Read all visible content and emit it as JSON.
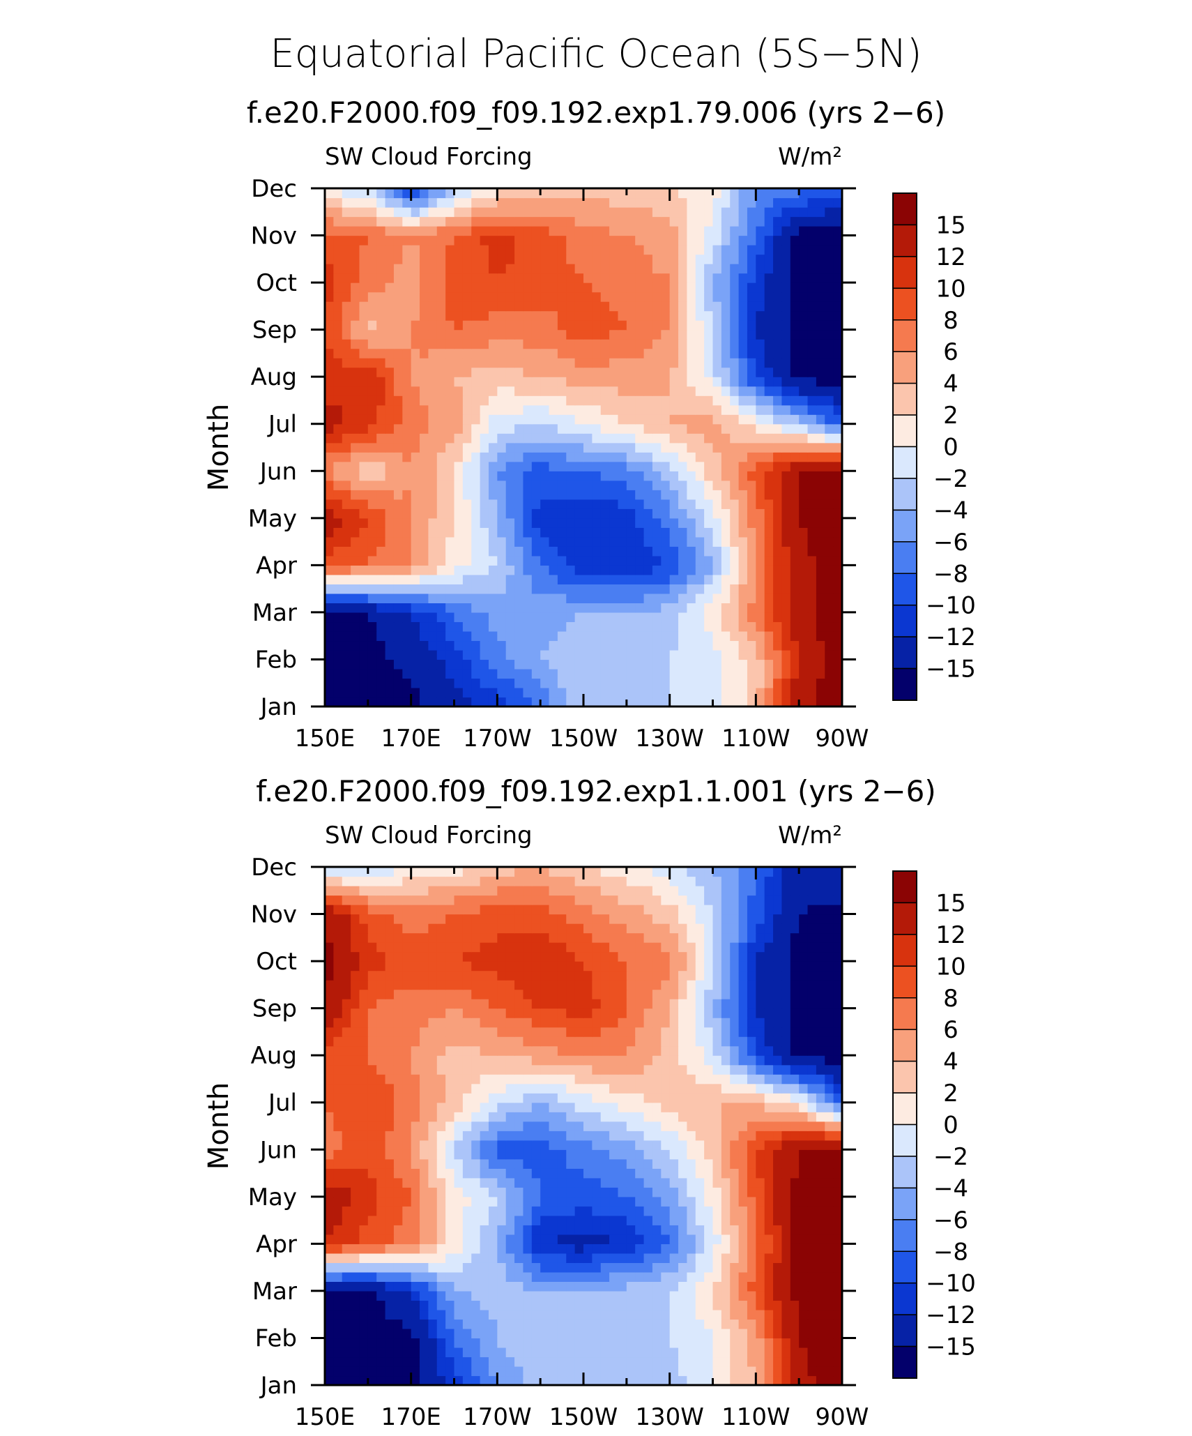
{
  "figure": {
    "title": "Equatorial Pacific Ocean (5S−5N)"
  },
  "chart_data": [
    {
      "type": "heatmap",
      "title": "f.e20.F2000.f09_f09.192.exp1.79.006 (yrs 2−6)",
      "left_label": "SW Cloud Forcing",
      "units": "W/m²",
      "xlabel": "",
      "ylabel": "Month",
      "x_ticklabels": [
        "150E",
        "170E",
        "170W",
        "150W",
        "130W",
        "110W",
        "90W"
      ],
      "x_values_deg_lon": [
        150,
        170,
        190,
        210,
        230,
        250,
        270
      ],
      "y_ticklabels": [
        "Jan",
        "Feb",
        "Mar",
        "Apr",
        "May",
        "Jun",
        "Jul",
        "Aug",
        "Sep",
        "Oct",
        "Nov",
        "Dec"
      ],
      "grid": [
        [
          -16,
          -16,
          -16,
          -13,
          -11,
          -8,
          -2,
          -3,
          -2,
          -1,
          3,
          14,
          17
        ],
        [
          -16,
          -16,
          -14,
          -11,
          -7,
          -4,
          -2,
          -3,
          -2,
          -1,
          3,
          12,
          17
        ],
        [
          -16,
          -15,
          -12,
          -8,
          -5,
          -5,
          -4,
          -4,
          -3,
          1,
          7,
          14,
          17
        ],
        [
          9,
          8,
          6,
          1,
          -2,
          -8,
          -11,
          -12,
          -10,
          -4,
          6,
          14,
          17
        ],
        [
          14,
          10,
          6,
          2,
          -4,
          -11,
          -12,
          -11,
          -7,
          -1,
          7,
          15,
          17
        ],
        [
          6,
          2,
          6,
          2,
          -6,
          -9,
          -8,
          -7,
          -3,
          3,
          9,
          15,
          17
        ],
        [
          13,
          11,
          7,
          5,
          -1,
          -2,
          0,
          2,
          4,
          5,
          1,
          -3,
          -9
        ],
        [
          11,
          12,
          6,
          4,
          3,
          4,
          5,
          5,
          4,
          -1,
          -10,
          -16,
          -16
        ],
        [
          10,
          3,
          6,
          8,
          7,
          7,
          9,
          8,
          6,
          -2,
          -12,
          -16,
          -16
        ],
        [
          11,
          7,
          5,
          9,
          10,
          9,
          8,
          7,
          6,
          -4,
          -11,
          -16,
          -16
        ],
        [
          9,
          8,
          6,
          8,
          11,
          9,
          7,
          6,
          5,
          -1,
          -8,
          -16,
          -16
        ],
        [
          0,
          -2,
          -11,
          -3,
          1,
          2,
          3,
          3,
          2,
          1,
          -6,
          -7,
          -9
        ]
      ],
      "colorbar_levels": [
        -15,
        -12,
        -10,
        -8,
        -6,
        -4,
        -2,
        0,
        2,
        4,
        6,
        8,
        10,
        12,
        15
      ],
      "colorbar_labels": [
        "15",
        "12",
        "10",
        "8",
        "6",
        "4",
        "2",
        "0",
        "−2",
        "−4",
        "−6",
        "−8",
        "−10",
        "−12",
        "−15"
      ],
      "colors": [
        "#03006b",
        "#0622a6",
        "#0b37d1",
        "#1f56e8",
        "#4a7ef2",
        "#7aa3f7",
        "#abc4f9",
        "#dae8fd",
        "#fdebe1",
        "#fbc5ad",
        "#f8a07c",
        "#f57a4f",
        "#ec5121",
        "#d8330e",
        "#b41a08",
        "#8b0404"
      ]
    },
    {
      "type": "heatmap",
      "title": "f.e20.F2000.f09_f09.192.exp1.1.001 (yrs 2−6)",
      "left_label": "SW Cloud Forcing",
      "units": "W/m²",
      "xlabel": "",
      "ylabel": "Month",
      "x_ticklabels": [
        "150E",
        "170E",
        "170W",
        "150W",
        "130W",
        "110W",
        "90W"
      ],
      "x_values_deg_lon": [
        150,
        170,
        190,
        210,
        230,
        250,
        270
      ],
      "y_ticklabels": [
        "Jan",
        "Feb",
        "Mar",
        "Apr",
        "May",
        "Jun",
        "Jul",
        "Aug",
        "Sep",
        "Oct",
        "Nov",
        "Dec"
      ],
      "grid": [
        [
          -16,
          -16,
          -16,
          -11,
          -6,
          -3,
          -2,
          -2,
          -3,
          0,
          4,
          14,
          17
        ],
        [
          -16,
          -16,
          -16,
          -8,
          -4,
          -2,
          -3,
          -3,
          -2,
          0,
          5,
          15,
          17
        ],
        [
          -16,
          -16,
          -12,
          -4,
          -3,
          -4,
          -4,
          -3,
          -2,
          2,
          9,
          16,
          17
        ],
        [
          12,
          9,
          7,
          1,
          -4,
          -12,
          -13,
          -12,
          -8,
          -1,
          7,
          16,
          17
        ],
        [
          14,
          11,
          8,
          1,
          -2,
          -8,
          -9,
          -8,
          -5,
          1,
          9,
          16,
          17
        ],
        [
          7,
          9,
          6,
          -2,
          -9,
          -9,
          -7,
          -5,
          -2,
          3,
          10,
          15,
          17
        ],
        [
          8,
          10,
          7,
          3,
          -1,
          -4,
          -1,
          1,
          3,
          4,
          4,
          1,
          -9
        ],
        [
          9,
          8,
          6,
          3,
          4,
          5,
          6,
          6,
          3,
          -1,
          -10,
          -16,
          -16
        ],
        [
          15,
          8,
          7,
          6,
          8,
          10,
          11,
          8,
          4,
          -4,
          -12,
          -16,
          -16
        ],
        [
          16,
          11,
          9,
          10,
          11,
          12,
          10,
          8,
          7,
          -1,
          -12,
          -16,
          -16
        ],
        [
          15,
          9,
          7,
          8,
          9,
          9,
          7,
          5,
          3,
          -2,
          -9,
          -15,
          -16
        ],
        [
          -3,
          -2,
          0,
          1,
          3,
          4,
          2,
          1,
          -1,
          -4,
          -8,
          -14,
          -12
        ]
      ],
      "colorbar_levels": [
        -15,
        -12,
        -10,
        -8,
        -6,
        -4,
        -2,
        0,
        2,
        4,
        6,
        8,
        10,
        12,
        15
      ],
      "colorbar_labels": [
        "15",
        "12",
        "10",
        "8",
        "6",
        "4",
        "2",
        "0",
        "−2",
        "−4",
        "−6",
        "−8",
        "−10",
        "−12",
        "−15"
      ],
      "colors": [
        "#03006b",
        "#0622a6",
        "#0b37d1",
        "#1f56e8",
        "#4a7ef2",
        "#7aa3f7",
        "#abc4f9",
        "#dae8fd",
        "#fdebe1",
        "#fbc5ad",
        "#f8a07c",
        "#f57a4f",
        "#ec5121",
        "#d8330e",
        "#b41a08",
        "#8b0404"
      ]
    }
  ]
}
